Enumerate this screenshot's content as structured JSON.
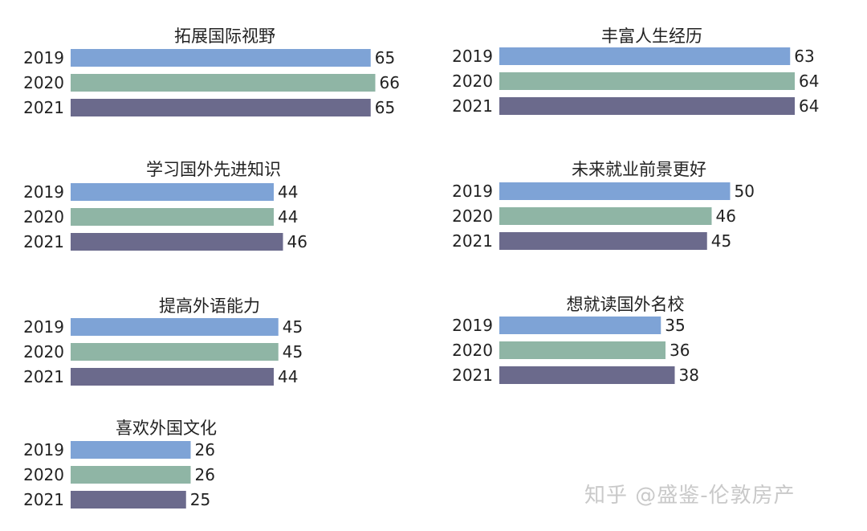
{
  "colors": {
    "2019": "#7ea3d6",
    "2020": "#8fb5a5",
    "2021": "#6b6a8c"
  },
  "watermark": "知乎 @盛鉴-伦敦房产",
  "chart_data": [
    {
      "type": "bar",
      "title": "拓展国际视野",
      "categories": [
        "2019",
        "2020",
        "2021"
      ],
      "values": [
        65,
        66,
        65
      ]
    },
    {
      "type": "bar",
      "title": "丰富人生经历",
      "categories": [
        "2019",
        "2020",
        "2021"
      ],
      "values": [
        63,
        64,
        64
      ]
    },
    {
      "type": "bar",
      "title": "学习国外先进知识",
      "categories": [
        "2019",
        "2020",
        "2021"
      ],
      "values": [
        44,
        44,
        46
      ]
    },
    {
      "type": "bar",
      "title": "未来就业前景更好",
      "categories": [
        "2019",
        "2020",
        "2021"
      ],
      "values": [
        50,
        46,
        45
      ]
    },
    {
      "type": "bar",
      "title": "提高外语能力",
      "categories": [
        "2019",
        "2020",
        "2021"
      ],
      "values": [
        45,
        45,
        44
      ]
    },
    {
      "type": "bar",
      "title": "想就读国外名校",
      "categories": [
        "2019",
        "2020",
        "2021"
      ],
      "values": [
        35,
        36,
        38
      ]
    },
    {
      "type": "bar",
      "title": "喜欢外国文化",
      "categories": [
        "2019",
        "2020",
        "2021"
      ],
      "values": [
        26,
        26,
        25
      ]
    }
  ]
}
